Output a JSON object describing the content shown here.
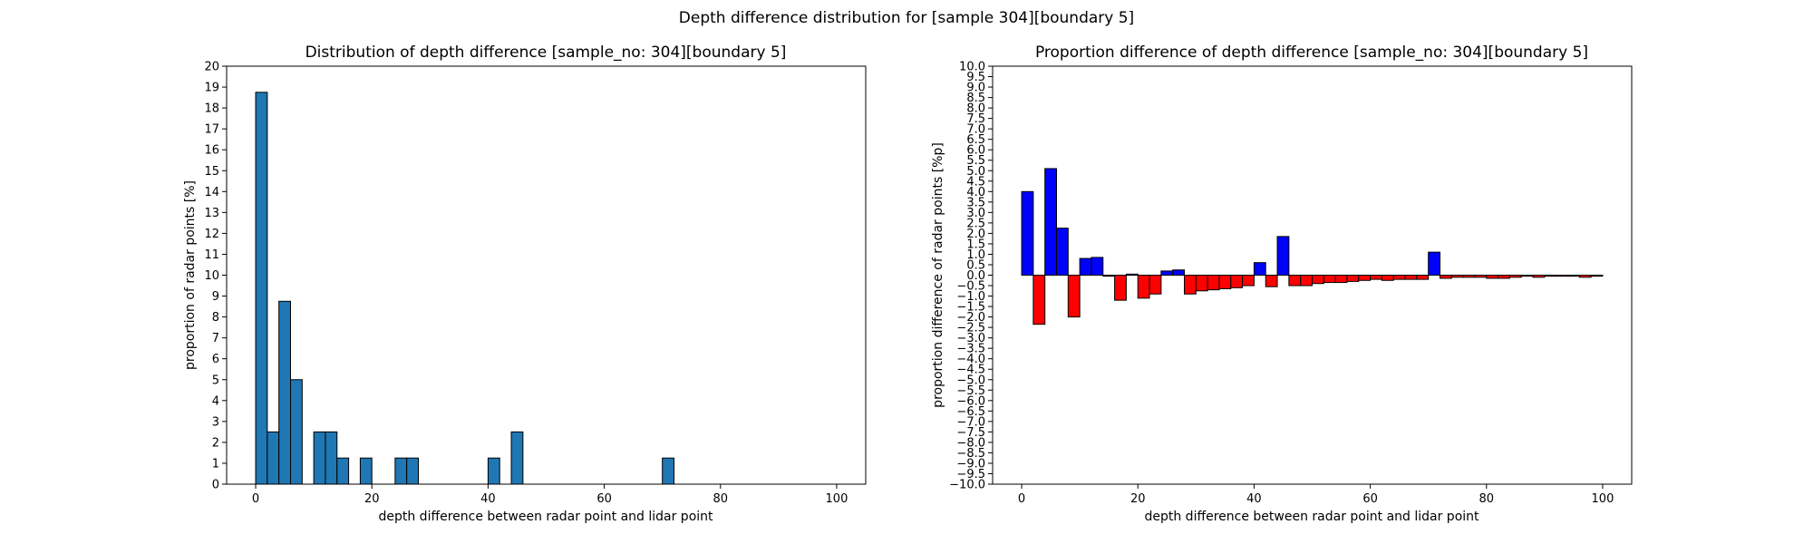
{
  "figure": {
    "suptitle": "Depth difference distribution for [sample 304][boundary 5]"
  },
  "chart_data": [
    {
      "type": "bar",
      "title": "Distribution of depth difference [sample_no: 304][boundary 5]",
      "xlabel": "depth difference between radar point and lidar point",
      "ylabel": "proportion of radar points [%]",
      "xlim": [
        -5,
        105
      ],
      "ylim": [
        0,
        20
      ],
      "xticks": [
        0,
        20,
        40,
        60,
        80,
        100
      ],
      "yticks": [
        0,
        1,
        2,
        3,
        4,
        5,
        6,
        7,
        8,
        9,
        10,
        11,
        12,
        13,
        14,
        15,
        16,
        17,
        18,
        19,
        20
      ],
      "bin_width": 2,
      "bar_color": "#1f77b4",
      "edge_color": "#000000",
      "x": [
        1,
        3,
        5,
        7,
        9,
        11,
        13,
        15,
        17,
        19,
        21,
        23,
        25,
        27,
        29,
        31,
        33,
        35,
        37,
        39,
        41,
        43,
        45,
        47,
        49,
        51,
        53,
        55,
        57,
        59,
        61,
        63,
        65,
        67,
        69,
        71,
        73,
        75,
        77,
        79,
        81,
        83,
        85,
        87,
        89,
        91,
        93,
        95,
        97,
        99
      ],
      "values": [
        18.75,
        2.5,
        8.75,
        5.0,
        0,
        2.5,
        2.5,
        1.25,
        0,
        1.25,
        0,
        0,
        1.25,
        1.25,
        0,
        0,
        0,
        0,
        0,
        0,
        1.25,
        0,
        2.5,
        0,
        0,
        0,
        0,
        0,
        0,
        0,
        0,
        0,
        0,
        0,
        0,
        1.25,
        0,
        0,
        0,
        0,
        0,
        0,
        0,
        0,
        0,
        0,
        0,
        0,
        0,
        0
      ]
    },
    {
      "type": "bar",
      "title": "Proportion difference of depth difference [sample_no: 304][boundary 5]",
      "xlabel": "depth difference between radar point and lidar point",
      "ylabel": "proportion difference of radar points [%p]",
      "xlim": [
        -5,
        105
      ],
      "ylim": [
        -10,
        10
      ],
      "xticks": [
        0,
        20,
        40,
        60,
        80,
        100
      ],
      "yticks": [
        -10.0,
        -9.5,
        -9.0,
        -8.5,
        -8.0,
        -7.5,
        -7.0,
        -6.5,
        -6.0,
        -5.5,
        -5.0,
        -4.5,
        -4.0,
        -3.5,
        -3.0,
        -2.5,
        -2.0,
        -1.5,
        -1.0,
        -0.5,
        0.0,
        0.5,
        1.0,
        1.5,
        2.0,
        2.5,
        3.0,
        3.5,
        4.0,
        4.5,
        5.0,
        5.5,
        6.0,
        6.5,
        7.0,
        7.5,
        8.0,
        8.5,
        9.0,
        9.5,
        10.0
      ],
      "bin_width": 2,
      "positive_color": "#0000ff",
      "negative_color": "#ff0000",
      "edge_color": "#000000",
      "x": [
        1,
        3,
        5,
        7,
        9,
        11,
        13,
        15,
        17,
        19,
        21,
        23,
        25,
        27,
        29,
        31,
        33,
        35,
        37,
        39,
        41,
        43,
        45,
        47,
        49,
        51,
        53,
        55,
        57,
        59,
        61,
        63,
        65,
        67,
        69,
        71,
        73,
        75,
        77,
        79,
        81,
        83,
        85,
        87,
        89,
        91,
        93,
        95,
        97,
        99
      ],
      "values": [
        4.0,
        -2.35,
        5.1,
        2.25,
        -2.0,
        0.8,
        0.85,
        -0.05,
        -1.2,
        0.05,
        -1.1,
        -0.9,
        0.2,
        0.25,
        -0.9,
        -0.75,
        -0.7,
        -0.65,
        -0.6,
        -0.5,
        0.6,
        -0.55,
        1.85,
        -0.5,
        -0.5,
        -0.4,
        -0.35,
        -0.35,
        -0.3,
        -0.25,
        -0.2,
        -0.25,
        -0.2,
        -0.2,
        -0.2,
        1.1,
        -0.15,
        -0.1,
        -0.1,
        -0.1,
        -0.15,
        -0.15,
        -0.1,
        -0.05,
        -0.1,
        -0.05,
        -0.05,
        -0.05,
        -0.1,
        -0.05
      ]
    }
  ]
}
